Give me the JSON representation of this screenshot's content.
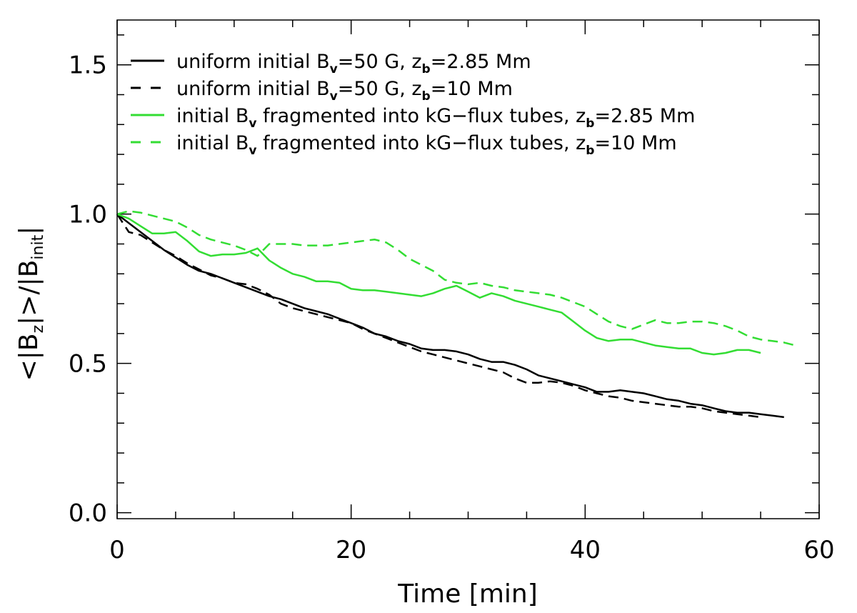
{
  "chart_data": {
    "type": "line",
    "xlabel": "Time [min]",
    "ylabel": {
      "prefix": "<|B",
      "sub1": "z",
      "mid": "|>/|B",
      "sub2": "init",
      "suffix": "|"
    },
    "xlim": [
      0,
      60
    ],
    "ylim": [
      -0.02,
      1.65
    ],
    "xticks": [
      0,
      20,
      40,
      60
    ],
    "xtick_labels": [
      "0",
      "20",
      "40",
      "60"
    ],
    "yticks": [
      0.0,
      0.5,
      1.0,
      1.5
    ],
    "ytick_labels": [
      "0.0",
      "0.5",
      "1.0",
      "1.5"
    ],
    "grid": false,
    "legend_position": "top-left",
    "series": [
      {
        "name": "uniform initial Bv=50 G, zb=2.85 Mm",
        "legend_parts": [
          "uniform initial B",
          "v",
          "=50 G, z",
          "b",
          "=2.85 Mm"
        ],
        "color": "#000000",
        "dash": "solid",
        "x": [
          0,
          1,
          2,
          3,
          4,
          5,
          6,
          7,
          8,
          9,
          10,
          11,
          12,
          13,
          14,
          15,
          16,
          17,
          18,
          19,
          20,
          21,
          22,
          23,
          24,
          25,
          26,
          27,
          28,
          29,
          30,
          31,
          32,
          33,
          34,
          35,
          36,
          37,
          38,
          39,
          40,
          41,
          42,
          43,
          44,
          45,
          46,
          47,
          48,
          49,
          50,
          51,
          52,
          53,
          54,
          55,
          56,
          57
        ],
        "y": [
          1.0,
          0.97,
          0.94,
          0.91,
          0.88,
          0.855,
          0.83,
          0.81,
          0.8,
          0.785,
          0.77,
          0.755,
          0.74,
          0.725,
          0.715,
          0.7,
          0.685,
          0.675,
          0.665,
          0.65,
          0.635,
          0.62,
          0.6,
          0.59,
          0.575,
          0.565,
          0.55,
          0.545,
          0.545,
          0.54,
          0.53,
          0.515,
          0.505,
          0.505,
          0.495,
          0.48,
          0.46,
          0.45,
          0.44,
          0.43,
          0.42,
          0.405,
          0.405,
          0.41,
          0.405,
          0.4,
          0.39,
          0.38,
          0.375,
          0.365,
          0.36,
          0.35,
          0.34,
          0.335,
          0.335,
          0.33,
          0.325,
          0.32
        ]
      },
      {
        "name": "uniform initial Bv=50 G, zb=10 Mm",
        "legend_parts": [
          "uniform initial B",
          "v",
          "=50 G, z",
          "b",
          "=10 Mm"
        ],
        "color": "#000000",
        "dash": "dashed",
        "x": [
          0,
          1,
          2,
          3,
          4,
          5,
          6,
          7,
          8,
          9,
          10,
          11,
          12,
          13,
          14,
          15,
          16,
          17,
          18,
          19,
          20,
          21,
          22,
          23,
          24,
          25,
          26,
          27,
          28,
          29,
          30,
          31,
          32,
          33,
          34,
          35,
          36,
          37,
          38,
          39,
          40,
          41,
          42,
          43,
          44,
          45,
          46,
          47,
          48,
          49,
          50,
          51,
          52,
          53,
          54,
          55
        ],
        "y": [
          1.0,
          0.94,
          0.93,
          0.905,
          0.88,
          0.86,
          0.835,
          0.815,
          0.795,
          0.785,
          0.77,
          0.765,
          0.75,
          0.73,
          0.7,
          0.685,
          0.675,
          0.665,
          0.655,
          0.645,
          0.635,
          0.615,
          0.6,
          0.585,
          0.57,
          0.555,
          0.54,
          0.53,
          0.52,
          0.51,
          0.5,
          0.49,
          0.48,
          0.47,
          0.45,
          0.435,
          0.435,
          0.44,
          0.435,
          0.425,
          0.41,
          0.4,
          0.39,
          0.385,
          0.375,
          0.37,
          0.365,
          0.36,
          0.355,
          0.355,
          0.35,
          0.34,
          0.335,
          0.33,
          0.325,
          0.32
        ]
      },
      {
        "name": "initial Bv fragmented into kG-flux tubes, zb=2.85 Mm",
        "legend_parts": [
          "initial B",
          "v",
          " fragmented into kG−flux tubes, z",
          "b",
          "=2.85 Mm"
        ],
        "color": "#33dd33",
        "dash": "solid",
        "x": [
          0,
          1,
          2,
          3,
          4,
          5,
          6,
          7,
          8,
          9,
          10,
          11,
          12,
          13,
          14,
          15,
          16,
          17,
          18,
          19,
          20,
          21,
          22,
          23,
          24,
          25,
          26,
          27,
          28,
          29,
          30,
          31,
          32,
          33,
          34,
          35,
          36,
          37,
          38,
          39,
          40,
          41,
          42,
          43,
          44,
          45,
          46,
          47,
          48,
          49,
          50,
          51,
          52,
          53,
          54,
          55
        ],
        "y": [
          1.0,
          0.985,
          0.96,
          0.935,
          0.935,
          0.94,
          0.91,
          0.875,
          0.86,
          0.865,
          0.865,
          0.87,
          0.885,
          0.845,
          0.82,
          0.8,
          0.79,
          0.775,
          0.775,
          0.77,
          0.75,
          0.745,
          0.745,
          0.74,
          0.735,
          0.73,
          0.725,
          0.735,
          0.75,
          0.76,
          0.74,
          0.72,
          0.735,
          0.725,
          0.71,
          0.7,
          0.69,
          0.68,
          0.67,
          0.64,
          0.61,
          0.585,
          0.575,
          0.58,
          0.58,
          0.57,
          0.56,
          0.555,
          0.55,
          0.55,
          0.535,
          0.53,
          0.535,
          0.545,
          0.545,
          0.535
        ]
      },
      {
        "name": "initial Bv fragmented into kG-flux tubes, zb=10 Mm",
        "legend_parts": [
          "initial B",
          "v",
          " fragmented into kG−flux tubes, z",
          "b",
          "=10 Mm"
        ],
        "color": "#33dd33",
        "dash": "dashed",
        "x": [
          0,
          1,
          2,
          3,
          4,
          5,
          6,
          7,
          8,
          9,
          10,
          11,
          12,
          13,
          14,
          15,
          16,
          17,
          18,
          19,
          20,
          21,
          22,
          23,
          24,
          25,
          26,
          27,
          28,
          29,
          30,
          31,
          32,
          33,
          34,
          35,
          36,
          37,
          38,
          39,
          40,
          41,
          42,
          43,
          44,
          45,
          46,
          47,
          48,
          49,
          50,
          51,
          52,
          53,
          54,
          55,
          56,
          57,
          58
        ],
        "y": [
          1.0,
          1.01,
          1.005,
          0.995,
          0.985,
          0.975,
          0.955,
          0.93,
          0.915,
          0.905,
          0.895,
          0.88,
          0.86,
          0.9,
          0.9,
          0.9,
          0.895,
          0.895,
          0.895,
          0.9,
          0.905,
          0.91,
          0.915,
          0.905,
          0.88,
          0.85,
          0.83,
          0.81,
          0.78,
          0.77,
          0.765,
          0.77,
          0.76,
          0.755,
          0.745,
          0.74,
          0.735,
          0.73,
          0.72,
          0.705,
          0.69,
          0.665,
          0.64,
          0.625,
          0.615,
          0.63,
          0.645,
          0.635,
          0.635,
          0.64,
          0.64,
          0.635,
          0.625,
          0.61,
          0.59,
          0.58,
          0.575,
          0.57,
          0.56
        ]
      }
    ]
  }
}
